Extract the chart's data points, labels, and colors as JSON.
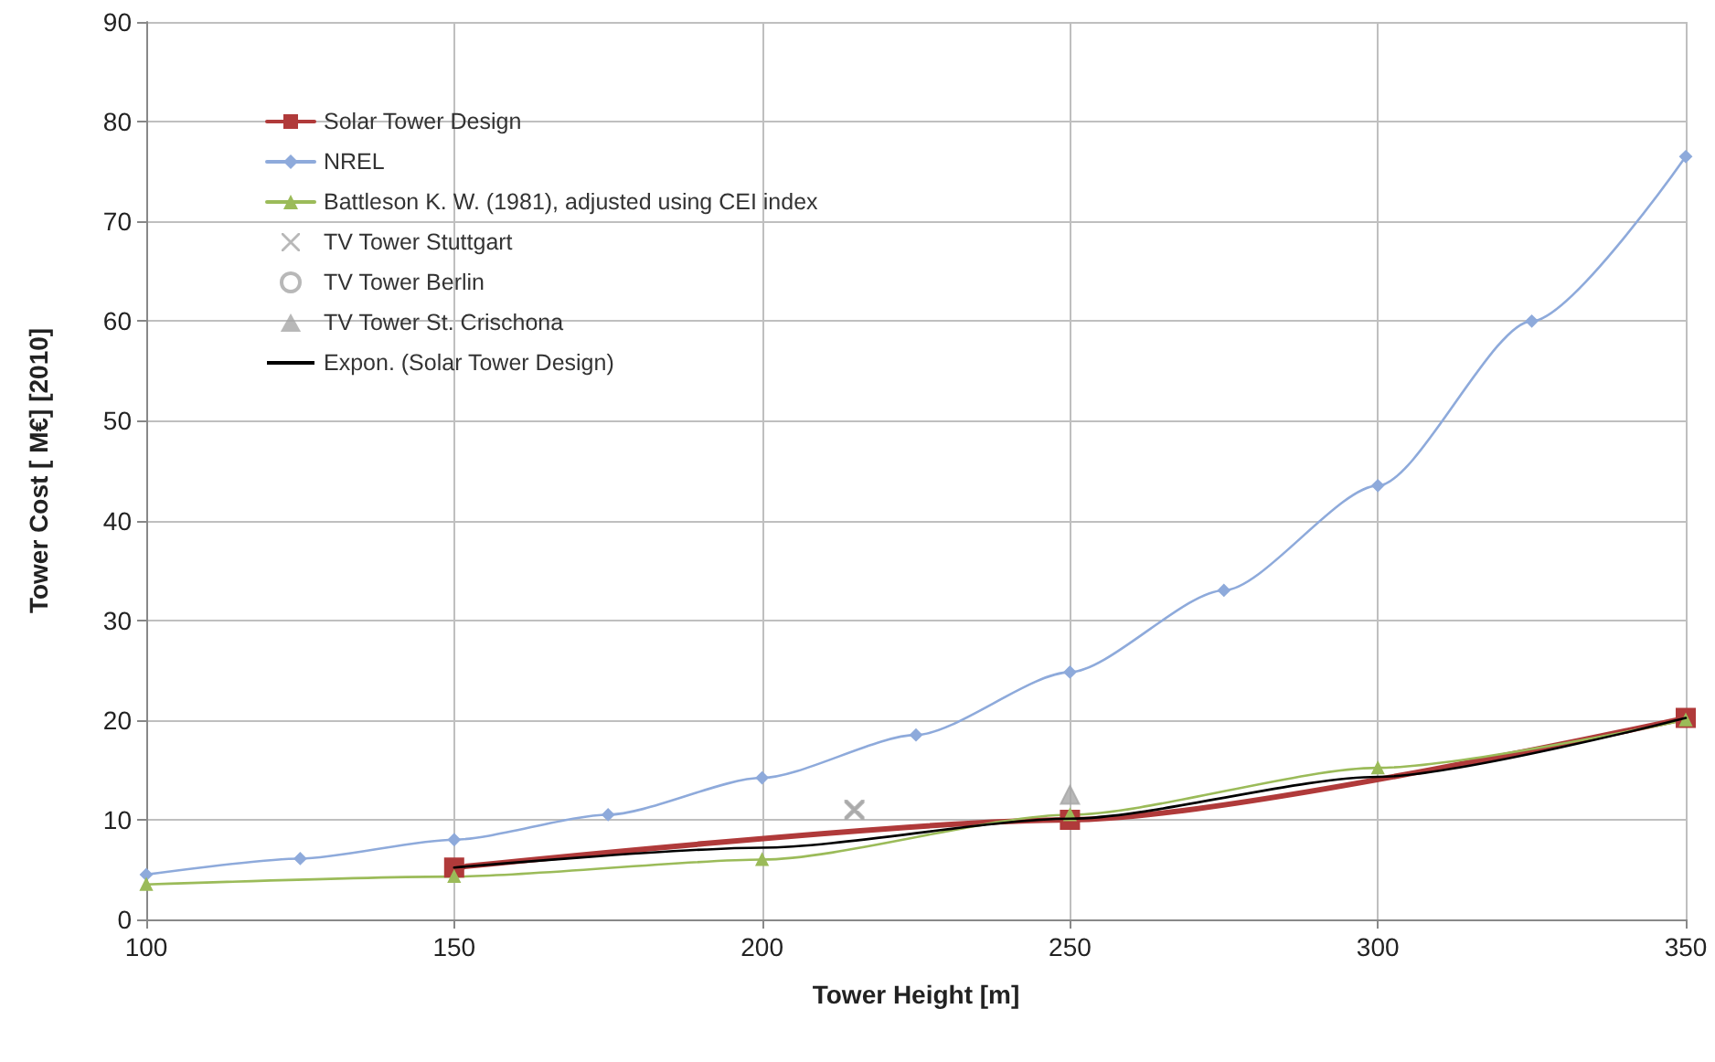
{
  "chart_data": {
    "type": "line",
    "xlabel": "Tower Height [m]",
    "ylabel": "Tower Cost [ M€] [2010]",
    "xlim": [
      100,
      350
    ],
    "xticks": [
      100,
      150,
      200,
      250,
      300,
      350
    ],
    "ylim": [
      0,
      90
    ],
    "yticks": [
      0,
      10,
      20,
      30,
      40,
      50,
      60,
      70,
      80,
      90
    ],
    "grid": true,
    "legend": "top left",
    "series": [
      {
        "name": "Solar Tower Design",
        "color": "#b03a3a",
        "marker": "square",
        "x": [
          150,
          250,
          350
        ],
        "values": [
          5.2,
          10,
          20.2
        ]
      },
      {
        "name": "NREL",
        "color": "#8eaadb",
        "marker": "diamond",
        "x": [
          100,
          125,
          150,
          175,
          200,
          225,
          250,
          275,
          300,
          325,
          350
        ],
        "values": [
          4.5,
          6.1,
          8,
          10.5,
          14.2,
          18.5,
          24.8,
          33,
          43.5,
          60,
          76.5
        ]
      },
      {
        "name": "Battleson K. W. (1981), adjusted using CEI index",
        "color": "#9bbb59",
        "marker": "triangle",
        "x": [
          100,
          150,
          200,
          250,
          300,
          350
        ],
        "values": [
          3.5,
          4.3,
          6,
          10.5,
          15.2,
          20
        ]
      },
      {
        "name": "TV Tower Stuttgart",
        "type": "scatter",
        "color": "#a6a6a6",
        "marker": "cross",
        "x": [
          215
        ],
        "values": [
          11
        ]
      },
      {
        "name": "TV Tower Berlin",
        "type": "scatter",
        "color": "#a6a6a6",
        "marker": "circle"
      },
      {
        "name": "TV Tower St. Crischona",
        "type": "scatter",
        "color": "#a6a6a6",
        "marker": "triangle",
        "x": [
          250
        ],
        "values": [
          12.5
        ]
      },
      {
        "name": "Expon. (Solar Tower Design)",
        "color": "#000000",
        "marker": "none",
        "x": [
          150,
          200,
          250,
          300,
          350
        ],
        "values": [
          5.2,
          7.2,
          10.1,
          14.3,
          20.2
        ]
      }
    ]
  }
}
